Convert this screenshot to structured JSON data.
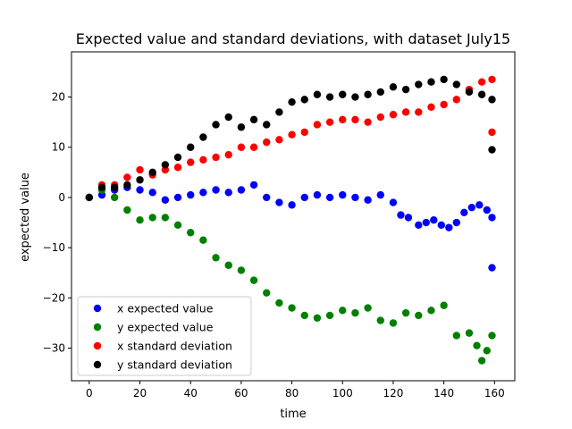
{
  "chart_data": {
    "type": "scatter",
    "title": "Expected value and standard deviations, with dataset July15",
    "xlabel": "time",
    "ylabel": "expected value",
    "xlim": [
      -7,
      168
    ],
    "ylim": [
      -36.5,
      29
    ],
    "xticks": [
      0,
      20,
      40,
      60,
      80,
      100,
      120,
      140,
      160
    ],
    "yticks": [
      -30,
      -20,
      -10,
      0,
      10,
      20
    ],
    "xtick_labels": [
      "0",
      "20",
      "40",
      "60",
      "80",
      "100",
      "120",
      "140",
      "160"
    ],
    "ytick_labels": [
      "−30",
      "−20",
      "−10",
      "0",
      "10",
      "20"
    ],
    "legend_position": "lower-left",
    "series": [
      {
        "name": "x expected value",
        "color": "#0000ff",
        "x": [
          0,
          5,
          10,
          15,
          20,
          25,
          30,
          35,
          40,
          45,
          50,
          55,
          60,
          65,
          70,
          75,
          80,
          85,
          90,
          95,
          100,
          105,
          110,
          115,
          120,
          123,
          126,
          130,
          133,
          136,
          139,
          142,
          145,
          148,
          151,
          154,
          157,
          159,
          159
        ],
        "y": [
          0.0,
          0.5,
          1.5,
          2.0,
          1.5,
          1.0,
          -0.5,
          0.0,
          0.5,
          1.0,
          1.5,
          1.0,
          1.5,
          2.5,
          0.0,
          -1.0,
          -1.5,
          0.0,
          0.5,
          0.0,
          0.5,
          0.0,
          -0.5,
          0.5,
          -1.0,
          -3.5,
          -4.0,
          -5.5,
          -5.0,
          -4.5,
          -5.5,
          -6.0,
          -5.0,
          -3.0,
          -2.0,
          -1.5,
          -2.5,
          -4.0,
          -14.0
        ]
      },
      {
        "name": "y expected value",
        "color": "#008000",
        "x": [
          0,
          5,
          10,
          15,
          20,
          25,
          30,
          35,
          40,
          45,
          50,
          55,
          60,
          65,
          70,
          75,
          80,
          85,
          90,
          95,
          100,
          105,
          110,
          115,
          120,
          125,
          130,
          135,
          140,
          145,
          150,
          153,
          155,
          157,
          159
        ],
        "y": [
          0.0,
          1.5,
          0.0,
          -2.5,
          -4.5,
          -4.0,
          -4.0,
          -5.5,
          -7.0,
          -8.5,
          -12.0,
          -13.5,
          -14.5,
          -16.5,
          -19.0,
          -21.0,
          -22.0,
          -23.5,
          -24.0,
          -23.5,
          -22.5,
          -23.0,
          -22.0,
          -24.5,
          -25.0,
          -23.0,
          -23.5,
          -22.5,
          -21.5,
          -27.5,
          -27.0,
          -29.5,
          -32.5,
          -30.5,
          -27.5
        ]
      },
      {
        "name": "x standard deviation",
        "color": "#ff0000",
        "x": [
          0,
          5,
          10,
          15,
          20,
          25,
          30,
          35,
          40,
          45,
          50,
          55,
          60,
          65,
          70,
          75,
          80,
          85,
          90,
          95,
          100,
          105,
          110,
          115,
          120,
          125,
          130,
          135,
          140,
          145,
          150,
          155,
          159,
          159
        ],
        "y": [
          0.0,
          2.5,
          2.5,
          4.0,
          5.5,
          4.5,
          5.5,
          6.0,
          7.0,
          7.5,
          8.0,
          8.5,
          10.0,
          10.0,
          11.0,
          11.5,
          12.5,
          13.0,
          14.5,
          15.0,
          15.5,
          15.5,
          15.0,
          16.0,
          16.5,
          17.0,
          17.0,
          18.0,
          18.5,
          19.5,
          21.5,
          23.0,
          23.5,
          13.0
        ]
      },
      {
        "name": "y standard deviation",
        "color": "#000000",
        "x": [
          0,
          5,
          10,
          15,
          20,
          25,
          30,
          35,
          40,
          45,
          50,
          55,
          60,
          65,
          70,
          75,
          80,
          85,
          90,
          95,
          100,
          105,
          110,
          115,
          120,
          125,
          130,
          135,
          140,
          145,
          150,
          155,
          159,
          159
        ],
        "y": [
          0.0,
          2.0,
          2.0,
          2.5,
          3.5,
          5.0,
          6.5,
          8.0,
          10.0,
          12.0,
          14.5,
          16.0,
          14.0,
          15.5,
          14.5,
          17.0,
          19.0,
          19.5,
          20.5,
          20.0,
          20.5,
          20.0,
          20.5,
          21.0,
          22.0,
          21.5,
          22.5,
          23.0,
          23.5,
          22.5,
          21.0,
          20.5,
          19.5,
          9.5
        ]
      }
    ]
  }
}
